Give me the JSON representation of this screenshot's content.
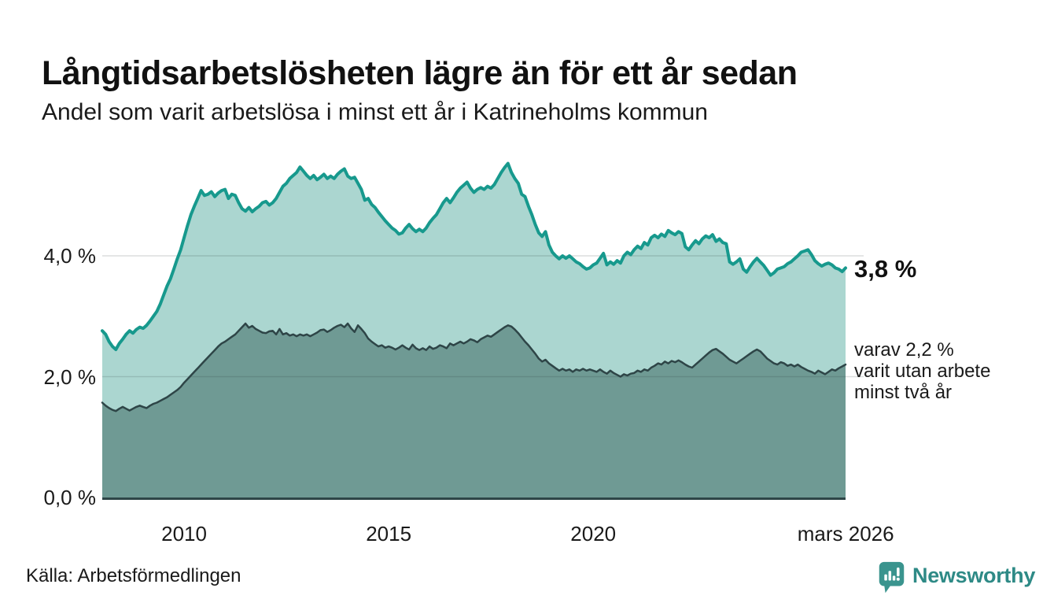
{
  "header": {
    "title": "Långtidsarbetslösheten lägre än för ett år sedan",
    "subtitle": "Andel som varit arbetslösa i minst ett år i Katrineholms kommun"
  },
  "annotations": {
    "total_end": "3,8 %",
    "secondary_end": [
      "varav 2,2 %",
      "varit utan arbete",
      "minst två år"
    ]
  },
  "footer": {
    "source": "Källa: Arbetsförmedlingen",
    "brand": "Newsworthy"
  },
  "colors": {
    "accent_teal": "#17998d",
    "light_fill": "#abd6d0",
    "dark_fill": "#6f9a94",
    "dark_stroke": "#2e4547",
    "baseline": "#2e4547",
    "gridline": "rgba(40,50,50,0.16)",
    "brand_teal": "#3a948e",
    "brand_text": "#2e8a86"
  },
  "chart_data": {
    "type": "area",
    "title": "Långtidsarbetslösheten lägre än för ett år sedan",
    "subtitle": "Andel som varit arbetslösa i minst ett år i Katrineholms kommun",
    "x_start": 2008.0,
    "x_step_years": 0.083333,
    "xlim": [
      2008.0,
      2026.17
    ],
    "ylim": [
      0,
      5.8
    ],
    "grid": true,
    "x_ticks": [
      {
        "t": 2010,
        "label": "2010"
      },
      {
        "t": 2015,
        "label": "2015"
      },
      {
        "t": 2020,
        "label": "2020"
      },
      {
        "t": 2026.17,
        "label": "mars 2026"
      }
    ],
    "y_ticks": [
      {
        "v": 0,
        "label": "0,0 %"
      },
      {
        "v": 2,
        "label": "2,0 %"
      },
      {
        "v": 4,
        "label": "4,0 %"
      }
    ],
    "series": [
      {
        "name": "Andel som varit arbetslösa minst ett år",
        "end_value": 3.8,
        "end_label": "3,8 %",
        "stroke": "#17998d",
        "fill": "#abd6d0",
        "stroke_width": 4,
        "values": [
          2.76,
          2.7,
          2.58,
          2.5,
          2.45,
          2.55,
          2.62,
          2.7,
          2.76,
          2.72,
          2.78,
          2.82,
          2.8,
          2.85,
          2.92,
          3.0,
          3.08,
          3.2,
          3.35,
          3.5,
          3.62,
          3.78,
          3.95,
          4.1,
          4.3,
          4.5,
          4.68,
          4.82,
          4.95,
          5.08,
          5.0,
          5.02,
          5.06,
          4.98,
          5.04,
          5.08,
          5.1,
          4.95,
          5.02,
          5.0,
          4.88,
          4.78,
          4.74,
          4.8,
          4.73,
          4.78,
          4.82,
          4.88,
          4.9,
          4.84,
          4.88,
          4.95,
          5.05,
          5.15,
          5.2,
          5.28,
          5.33,
          5.38,
          5.47,
          5.4,
          5.33,
          5.28,
          5.33,
          5.26,
          5.3,
          5.35,
          5.28,
          5.32,
          5.28,
          5.35,
          5.4,
          5.44,
          5.32,
          5.28,
          5.3,
          5.2,
          5.1,
          4.92,
          4.95,
          4.85,
          4.8,
          4.72,
          4.65,
          4.58,
          4.52,
          4.46,
          4.42,
          4.36,
          4.38,
          4.46,
          4.52,
          4.45,
          4.4,
          4.44,
          4.4,
          4.46,
          4.55,
          4.62,
          4.68,
          4.78,
          4.88,
          4.95,
          4.88,
          4.96,
          5.05,
          5.12,
          5.17,
          5.22,
          5.12,
          5.05,
          5.1,
          5.13,
          5.1,
          5.15,
          5.12,
          5.18,
          5.28,
          5.38,
          5.46,
          5.53,
          5.38,
          5.28,
          5.2,
          5.02,
          4.98,
          4.82,
          4.68,
          4.52,
          4.38,
          4.32,
          4.4,
          4.18,
          4.06,
          4.0,
          3.95,
          4.0,
          3.96,
          4.0,
          3.95,
          3.9,
          3.87,
          3.82,
          3.78,
          3.8,
          3.85,
          3.88,
          3.96,
          4.04,
          3.85,
          3.9,
          3.86,
          3.92,
          3.88,
          4.0,
          4.06,
          4.02,
          4.1,
          4.16,
          4.12,
          4.22,
          4.18,
          4.3,
          4.34,
          4.3,
          4.36,
          4.32,
          4.42,
          4.38,
          4.35,
          4.4,
          4.37,
          4.15,
          4.1,
          4.18,
          4.25,
          4.2,
          4.28,
          4.33,
          4.3,
          4.35,
          4.24,
          4.28,
          4.22,
          4.2,
          3.9,
          3.86,
          3.9,
          3.95,
          3.78,
          3.73,
          3.82,
          3.9,
          3.96,
          3.9,
          3.84,
          3.76,
          3.68,
          3.72,
          3.78,
          3.8,
          3.82,
          3.87,
          3.9,
          3.95,
          4.0,
          4.06,
          4.08,
          4.1,
          4.02,
          3.92,
          3.87,
          3.83,
          3.86,
          3.88,
          3.85,
          3.8,
          3.78,
          3.74,
          3.8
        ]
      },
      {
        "name": "varav utan arbete minst två år",
        "end_value": 2.2,
        "end_label": "varav 2,2 % varit utan arbete minst två år",
        "stroke": "#2e4547",
        "fill": "#6f9a94",
        "stroke_width": 2.5,
        "values": [
          1.57,
          1.52,
          1.48,
          1.45,
          1.43,
          1.47,
          1.5,
          1.47,
          1.44,
          1.47,
          1.5,
          1.52,
          1.5,
          1.48,
          1.52,
          1.55,
          1.57,
          1.6,
          1.63,
          1.66,
          1.7,
          1.74,
          1.78,
          1.83,
          1.9,
          1.96,
          2.02,
          2.08,
          2.14,
          2.2,
          2.26,
          2.32,
          2.38,
          2.44,
          2.5,
          2.55,
          2.58,
          2.62,
          2.66,
          2.7,
          2.76,
          2.82,
          2.88,
          2.81,
          2.84,
          2.79,
          2.76,
          2.73,
          2.72,
          2.75,
          2.76,
          2.7,
          2.79,
          2.7,
          2.72,
          2.68,
          2.7,
          2.67,
          2.7,
          2.68,
          2.7,
          2.67,
          2.7,
          2.73,
          2.77,
          2.78,
          2.74,
          2.77,
          2.81,
          2.84,
          2.86,
          2.82,
          2.88,
          2.8,
          2.74,
          2.85,
          2.79,
          2.72,
          2.63,
          2.58,
          2.54,
          2.5,
          2.52,
          2.48,
          2.5,
          2.48,
          2.45,
          2.48,
          2.52,
          2.48,
          2.45,
          2.53,
          2.47,
          2.44,
          2.47,
          2.44,
          2.5,
          2.46,
          2.48,
          2.52,
          2.5,
          2.47,
          2.55,
          2.52,
          2.55,
          2.58,
          2.55,
          2.58,
          2.62,
          2.6,
          2.57,
          2.62,
          2.65,
          2.68,
          2.66,
          2.7,
          2.74,
          2.78,
          2.82,
          2.85,
          2.83,
          2.78,
          2.72,
          2.65,
          2.58,
          2.52,
          2.45,
          2.38,
          2.3,
          2.25,
          2.28,
          2.22,
          2.18,
          2.14,
          2.1,
          2.13,
          2.1,
          2.12,
          2.08,
          2.12,
          2.1,
          2.13,
          2.1,
          2.12,
          2.1,
          2.08,
          2.12,
          2.08,
          2.05,
          2.1,
          2.06,
          2.03,
          2.0,
          2.04,
          2.02,
          2.05,
          2.06,
          2.1,
          2.08,
          2.12,
          2.1,
          2.15,
          2.18,
          2.22,
          2.2,
          2.25,
          2.22,
          2.26,
          2.24,
          2.27,
          2.24,
          2.2,
          2.17,
          2.15,
          2.2,
          2.25,
          2.3,
          2.35,
          2.4,
          2.44,
          2.46,
          2.42,
          2.38,
          2.33,
          2.28,
          2.25,
          2.22,
          2.26,
          2.3,
          2.34,
          2.38,
          2.42,
          2.45,
          2.42,
          2.36,
          2.3,
          2.26,
          2.22,
          2.2,
          2.24,
          2.22,
          2.18,
          2.2,
          2.17,
          2.2,
          2.16,
          2.13,
          2.1,
          2.08,
          2.05,
          2.1,
          2.07,
          2.04,
          2.08,
          2.12,
          2.1,
          2.14,
          2.17,
          2.2
        ]
      }
    ]
  }
}
